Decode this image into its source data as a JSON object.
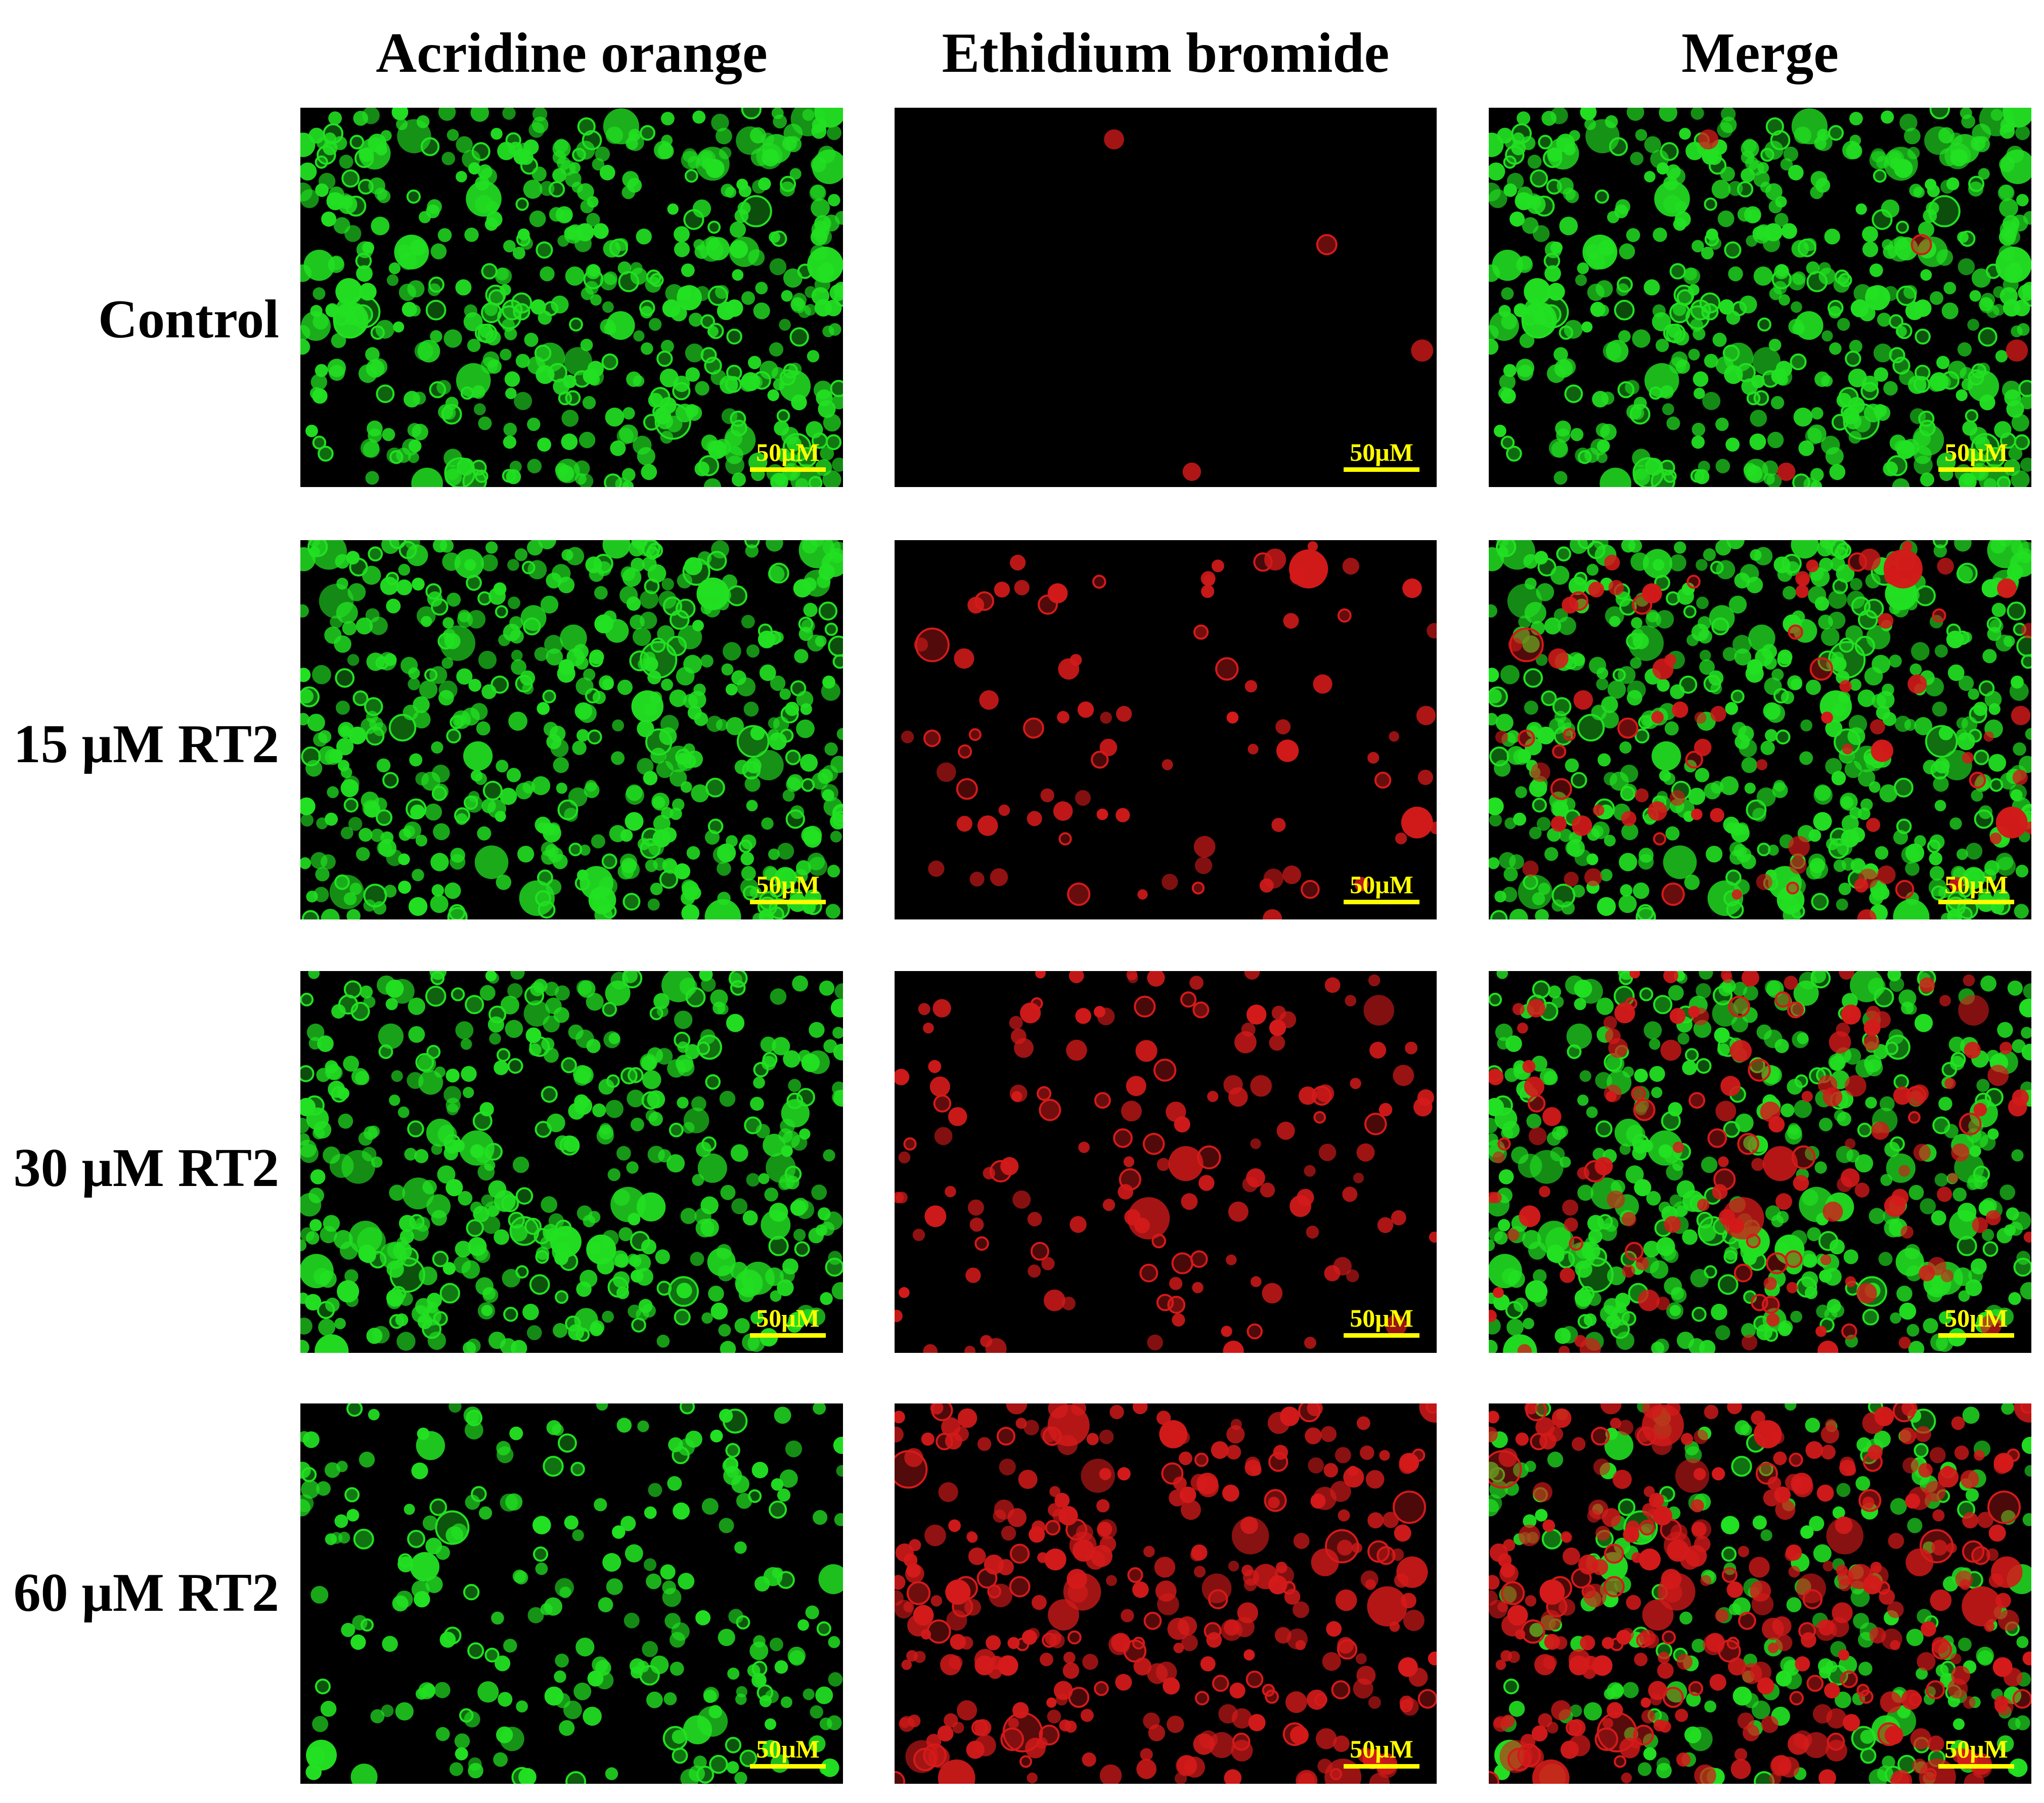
{
  "figure": {
    "columns": [
      {
        "key": "ao",
        "label": "Acridine orange",
        "stain": "green"
      },
      {
        "key": "eb",
        "label": "Ethidium bromide",
        "stain": "red"
      },
      {
        "key": "merge",
        "label": "Merge",
        "stain": "merge"
      }
    ],
    "rows": [
      {
        "label": "Control",
        "green_cell_level": 1.0,
        "red_cell_level": 0.01
      },
      {
        "label": "15 μM RT2",
        "green_cell_level": 1.0,
        "red_cell_level": 0.2
      },
      {
        "label": "30 μM RT2",
        "green_cell_level": 0.85,
        "red_cell_level": 0.35
      },
      {
        "label": "60 μM RT2",
        "green_cell_level": 0.45,
        "red_cell_level": 0.8
      }
    ],
    "scale_bar": "50μM",
    "colors": {
      "green": "#22e022",
      "red": "#d41a1a",
      "scale": "#ffff00",
      "background": "#000000"
    }
  }
}
